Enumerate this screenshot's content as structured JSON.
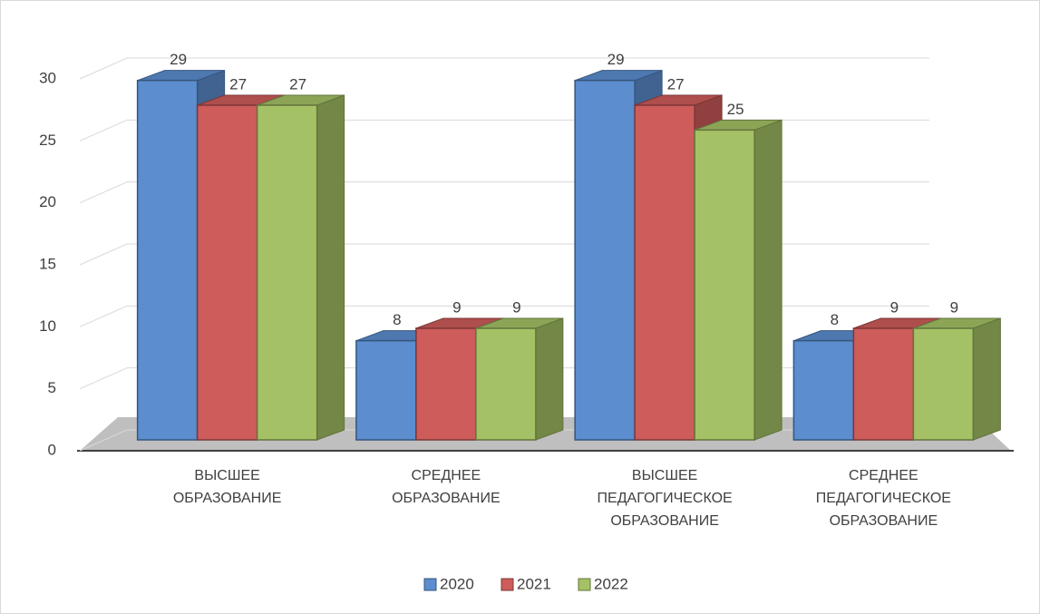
{
  "chart_data": {
    "type": "bar3d",
    "categories": [
      "ВЫСШЕЕ ОБРАЗОВАНИЕ",
      "СРЕДНЕЕ ОБРАЗОВАНИЕ",
      "ВЫСШЕЕ ПЕДАГОГИЧЕСКОЕ ОБРАЗОВАНИЕ",
      "СРЕДНЕЕ ПЕДАГОГИЧЕСКОЕ ОБРАЗОВАНИЕ"
    ],
    "series": [
      {
        "name": "2020",
        "color": "#5b8dcf",
        "values": [
          29,
          8,
          29,
          8
        ]
      },
      {
        "name": "2021",
        "color": "#cd5c5a",
        "values": [
          27,
          9,
          27,
          9
        ]
      },
      {
        "name": "2022",
        "color": "#a5c165",
        "values": [
          27,
          9,
          25,
          9
        ]
      }
    ],
    "ylim": [
      0,
      30
    ],
    "yticks": [
      0,
      5,
      10,
      15,
      20,
      25,
      30
    ],
    "grid": true,
    "legend": "bottom"
  }
}
